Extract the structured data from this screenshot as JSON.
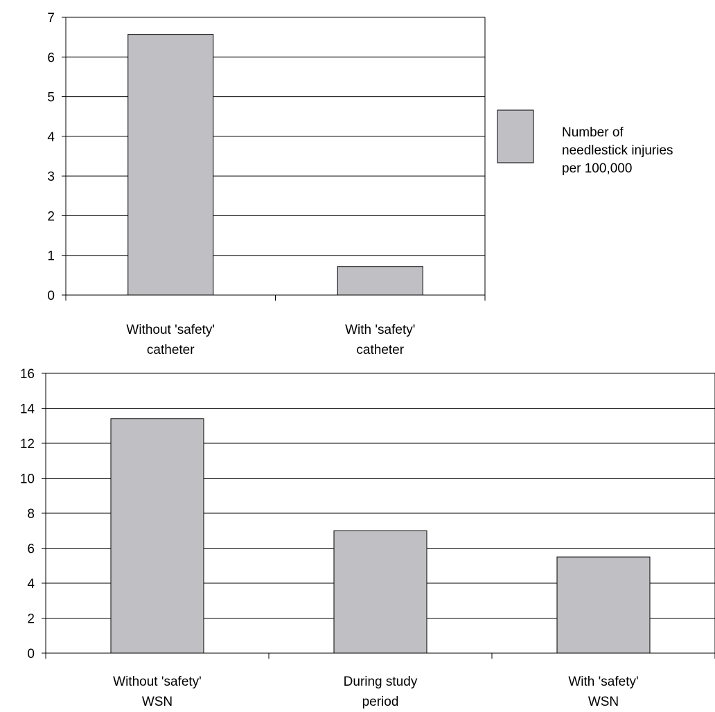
{
  "chart_data": [
    {
      "type": "bar",
      "categories": [
        [
          "Without 'safety'",
          "catheter"
        ],
        [
          "With 'safety'",
          "catheter"
        ]
      ],
      "series": [
        {
          "name": "Number of needlestick injuries per 100,000",
          "values": [
            6.57,
            0.72
          ]
        }
      ],
      "ylim": [
        0,
        7
      ],
      "yticks": [
        0,
        1,
        2,
        3,
        4,
        5,
        6,
        7
      ],
      "grid": true,
      "legend": {
        "position": "right",
        "lines": [
          "Number of",
          "needlestick injuries",
          "per 100,000"
        ]
      }
    },
    {
      "type": "bar",
      "categories": [
        [
          "Without 'safety'",
          "WSN"
        ],
        [
          "During study",
          "period"
        ],
        [
          "With 'safety'",
          "WSN"
        ]
      ],
      "series": [
        {
          "values": [
            13.4,
            7.0,
            5.5
          ]
        }
      ],
      "ylim": [
        0,
        16
      ],
      "yticks": [
        0,
        2,
        4,
        6,
        8,
        10,
        12,
        14,
        16
      ],
      "grid": true
    }
  ],
  "colors": {
    "bar_fill": "#c0c0c4",
    "bar_stroke": "#000000",
    "grid": "#000000",
    "background": "#ffffff"
  }
}
